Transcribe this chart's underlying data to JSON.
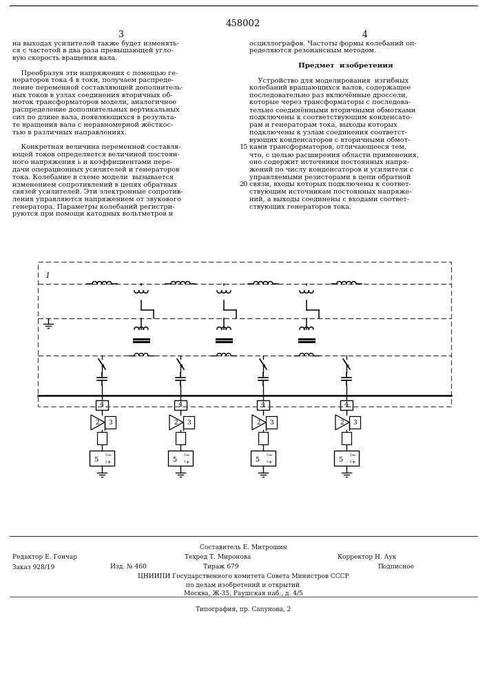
{
  "title_number": "458002",
  "col_left": "3",
  "col_right": "4",
  "text_left_col": [
    "на выходах усилителей также будет изменять-",
    "ся с частотой в два раза превышающей угло-",
    "вую скорость вращения вала.",
    "",
    "    Преобразуя эти напряжения с помощью ге-",
    "нераторов тока 4 в токи, получаем распреде-",
    "ление переменной составляющей дополнитель-",
    "ных токов в узлах соединения вторичных об-",
    "моток трансформаторов модели, аналогичное",
    "распределение дополнительных вертикальных",
    "сил по длине вала, появляющихся в результа-",
    "те вращения вала с неравномерной жёсткос-",
    "тью в различных направлениях.",
    "",
    "    Конкретная величина переменной составля-",
    "ющей токов определяется величиной постоян-",
    "ного напряжения iᵢ и коэффициентами пере-",
    "дачи операционных усилителей и генераторов",
    "тока. Колебание в схеме модели  вызывается",
    "изменением сопротивлений в цепях обратных",
    "связей усилителей. Эти электронные сопротив-",
    "ления управляются напряжением от звукового",
    "генератора. Параметры колебаний регистри-",
    "руются при помощи катодных вольтметров и"
  ],
  "text_right_col": [
    "осциллографов. Частоты формы колебаний оп-",
    "ределяются резонансным методом.",
    "",
    "Предмет  изобретения",
    "",
    "    Устройство для моделирования  изгибных",
    "колебаний вращающихся валов, содержащее",
    "последовательно раз включённые дроссели,",
    "которые через трансформаторы с последова-",
    "тельно соединёнными вторичными обмотками",
    "подключены к соответствующим конденсато-",
    "рам и генераторам тока, выходы которых",
    "подключены к узлам соединения соответст-",
    "вующих конденсаторов с вторичными обмот-",
    "ками трансформаторов, отличающееся тем,",
    "что, с целью расширения области применения,",
    "оно содержит источники постоянных напря-",
    "жений по числу конденсаторов и усилители с",
    "управляемыми резисторами в цепи обратной",
    "связи, входы которых подключены к соответ-",
    "ствующим источникам постоянных напряже-",
    "ний, а выходы соединены с входами соответ-",
    "ствующих генераторов тока."
  ],
  "footer_composer": "Составитель Е. Митрошин",
  "footer_editor": "Редактор Е. Гончар",
  "footer_tech": "Техред Т. Миронова",
  "footer_corrector": "Корректор Н. Аук",
  "footer_order": "Заказ 928/19",
  "footer_izd": "Изд. № 460",
  "footer_tirazh": "Тираж 679",
  "footer_podpisnoe": "Подписное",
  "footer_tsniip": "ЦНИИПИ Государственного комитета Совета Министров СССР",
  "footer_dela": "по делам изобретений и открытий",
  "footer_addr": "Москва, Ж-35, Раушская наб., д. 4/5",
  "footer_tipografiya": "Типография, пр. Сапунова, 2",
  "bg_color": "#ffffff",
  "text_color": "#111111"
}
